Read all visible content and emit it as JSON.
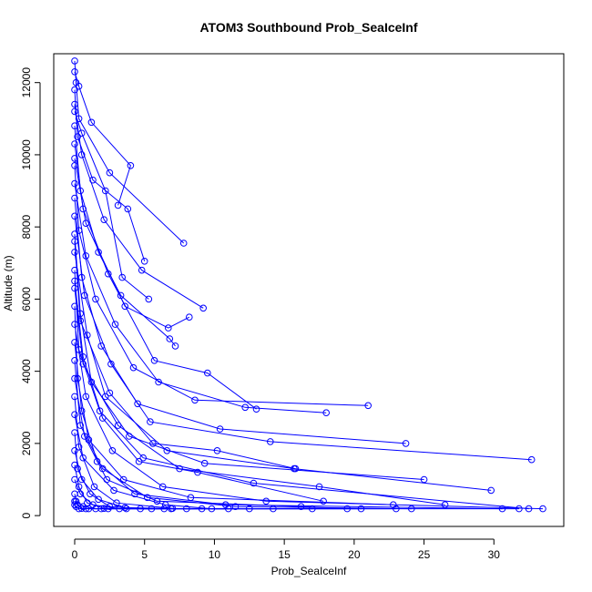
{
  "chart_data": {
    "type": "line",
    "title": "ATOM3 Southbound Prob_SeaIceInf",
    "xlabel": "Prob_SeaIceInf",
    "ylabel": "Altitude (m)",
    "xlim": [
      -1.5,
      35
    ],
    "ylim": [
      -300,
      12800
    ],
    "xticks": [
      0,
      5,
      10,
      15,
      20,
      25,
      30
    ],
    "yticks": [
      0,
      2000,
      4000,
      6000,
      8000,
      10000,
      12000
    ],
    "point_marker": "open-circle",
    "color": "#0000ff",
    "grid": false,
    "series": [
      {
        "x": [
          0,
          0.1,
          0.3,
          2.5,
          7.8
        ],
        "y": [
          12600,
          12000,
          11000,
          9500,
          7550
        ]
      },
      {
        "x": [
          0,
          0.2,
          1.3,
          3.8,
          5.0
        ],
        "y": [
          11800,
          10500,
          9300,
          8500,
          7050
        ]
      },
      {
        "x": [
          0,
          0.5,
          2.1,
          4.8,
          9.2
        ],
        "y": [
          11400,
          10000,
          8200,
          6800,
          5750
        ]
      },
      {
        "x": [
          0,
          0.4,
          1.7,
          3.3,
          6.8,
          7.2
        ],
        "y": [
          10800,
          9000,
          7300,
          6100,
          4900,
          4700
        ]
      },
      {
        "x": [
          0,
          0.6,
          2.4,
          5.7,
          9.5,
          13.0
        ],
        "y": [
          10300,
          8500,
          6700,
          4300,
          3950,
          2950
        ]
      },
      {
        "x": [
          0,
          0.3,
          1.5,
          4.2,
          8.6,
          21.0
        ],
        "y": [
          9700,
          7900,
          6000,
          4100,
          3200,
          3050
        ]
      },
      {
        "x": [
          0,
          0.8,
          2.9,
          6.0,
          12.2,
          18.0
        ],
        "y": [
          9200,
          7200,
          5300,
          3700,
          3000,
          2850
        ]
      },
      {
        "x": [
          0,
          0.5,
          1.9,
          4.5,
          10.4,
          23.7
        ],
        "y": [
          8800,
          6600,
          4700,
          3100,
          2400,
          2000
        ]
      },
      {
        "x": [
          0,
          0.7,
          2.6,
          5.4,
          14.0,
          32.7
        ],
        "y": [
          8300,
          6100,
          4200,
          2600,
          2050,
          1550
        ]
      },
      {
        "x": [
          0,
          0.4,
          1.2,
          3.9,
          9.3,
          25.0
        ],
        "y": [
          7800,
          5600,
          3700,
          2200,
          1450,
          1000
        ]
      },
      {
        "x": [
          0,
          0.9,
          2.2,
          6.6,
          15.7,
          29.8
        ],
        "y": [
          7300,
          5000,
          3300,
          1800,
          1300,
          700
        ]
      },
      {
        "x": [
          0,
          0.3,
          1.8,
          4.9,
          12.8,
          32.5
        ],
        "y": [
          6800,
          4600,
          2900,
          1600,
          900,
          190
        ]
      },
      {
        "x": [
          0,
          0.6,
          3.1,
          7.5,
          17.5,
          26.5
        ],
        "y": [
          6300,
          4200,
          2500,
          1300,
          800,
          300
        ]
      },
      {
        "x": [
          0,
          0.2,
          1.0,
          3.5,
          8.3,
          22.8
        ],
        "y": [
          5800,
          3800,
          2100,
          1000,
          500,
          300
        ]
      },
      {
        "x": [
          0,
          0.8,
          2.7,
          6.3,
          13.7,
          33.5
        ],
        "y": [
          5300,
          3300,
          1800,
          800,
          400,
          190
        ]
      },
      {
        "x": [
          0,
          0.5,
          1.6,
          4.3,
          10.8,
          30.6
        ],
        "y": [
          4800,
          2900,
          1500,
          600,
          300,
          190
        ]
      },
      {
        "x": [
          0,
          0.4,
          2.0,
          5.2,
          11.5,
          24.1
        ],
        "y": [
          4300,
          2500,
          1300,
          500,
          250,
          190
        ]
      },
      {
        "x": [
          0,
          0.7,
          2.3,
          5.9,
          16.2,
          19.5
        ],
        "y": [
          3800,
          2200,
          1000,
          400,
          250,
          190
        ]
      },
      {
        "x": [
          0,
          0.3,
          1.4,
          3.0,
          7.0,
          14.2
        ],
        "y": [
          3300,
          1900,
          800,
          350,
          200,
          190
        ]
      },
      {
        "x": [
          0,
          0.6,
          2.8,
          6.5,
          9.8,
          20.5
        ],
        "y": [
          2800,
          1600,
          700,
          300,
          190,
          190
        ]
      },
      {
        "x": [
          0,
          0.2,
          1.1,
          2.5,
          4.7,
          11.0
        ],
        "y": [
          2300,
          1300,
          600,
          250,
          190,
          190
        ]
      },
      {
        "x": [
          0,
          0.5,
          1.7,
          3.6,
          8.0,
          23.0
        ],
        "y": [
          1800,
          1000,
          450,
          220,
          190,
          190
        ]
      },
      {
        "x": [
          0,
          0.3,
          0.9,
          2.1,
          5.5,
          17.0
        ],
        "y": [
          1400,
          800,
          350,
          200,
          190,
          190
        ]
      },
      {
        "x": [
          0,
          0.4,
          1.3,
          3.2,
          6.9,
          31.8
        ],
        "y": [
          1000,
          600,
          300,
          190,
          190,
          190
        ]
      },
      {
        "x": [
          0,
          0.1,
          0.6,
          1.5,
          3.7,
          12.5
        ],
        "y": [
          600,
          400,
          250,
          190,
          190,
          190
        ]
      },
      {
        "x": [
          0,
          0.2,
          0.5,
          1.0,
          2.4,
          9.1
        ],
        "y": [
          400,
          300,
          200,
          190,
          190,
          190
        ]
      },
      {
        "x": [
          0,
          0.1,
          0.3,
          0.8,
          1.9,
          6.4
        ],
        "y": [
          300,
          250,
          190,
          190,
          190,
          190
        ]
      },
      {
        "x": [
          0,
          0.3,
          1.2,
          4.0,
          3.1
        ],
        "y": [
          12300,
          11900,
          10900,
          9700,
          8600
        ]
      },
      {
        "x": [
          0,
          0.5,
          2.2,
          3.4,
          5.3
        ],
        "y": [
          11200,
          10600,
          9000,
          6600,
          6000
        ]
      },
      {
        "x": [
          0,
          0.8,
          3.6,
          6.7,
          8.2
        ],
        "y": [
          9900,
          8100,
          5800,
          5200,
          5500
        ]
      },
      {
        "x": [
          0,
          0.4,
          2.5,
          5.6,
          10.2,
          15.8
        ],
        "y": [
          7600,
          5400,
          3400,
          2000,
          1800,
          1300
        ]
      },
      {
        "x": [
          0,
          0.6,
          2.0,
          4.6,
          8.8,
          17.8
        ],
        "y": [
          6500,
          4400,
          2700,
          1500,
          1200,
          400
        ]
      }
    ]
  }
}
